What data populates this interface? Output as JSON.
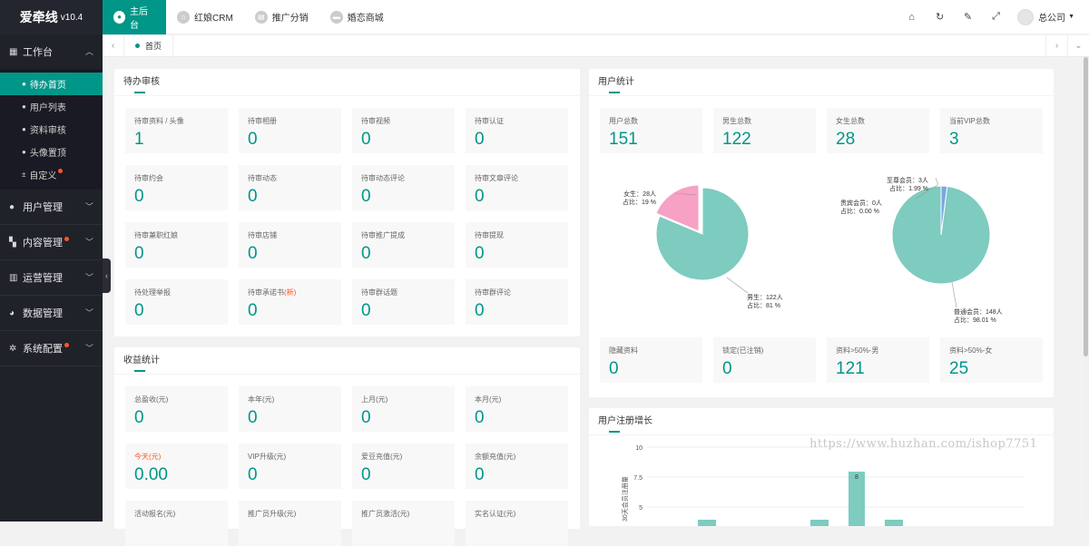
{
  "brand": {
    "name": "爱牵线",
    "version": "v10.4"
  },
  "sidebar": {
    "workbench": "工作台",
    "sub_items": [
      {
        "label": "待办首页",
        "active": true
      },
      {
        "label": "用户列表"
      },
      {
        "label": "资料审核"
      },
      {
        "label": "头像置顶"
      },
      {
        "label": "自定义"
      }
    ],
    "groups": [
      {
        "label": "用户管理"
      },
      {
        "label": "内容管理"
      },
      {
        "label": "运营管理"
      },
      {
        "label": "数据管理"
      },
      {
        "label": "系统配置"
      }
    ]
  },
  "topbar": {
    "tabs": [
      "主后台",
      "红娘CRM",
      "推广分销",
      "婚恋商城"
    ],
    "user": "总公司"
  },
  "tabsbar": {
    "home": "首页"
  },
  "pending": {
    "title": "待办审核",
    "items": [
      {
        "label": "待审资料 / 头像",
        "value": "1"
      },
      {
        "label": "待审相册",
        "value": "0"
      },
      {
        "label": "待审视频",
        "value": "0"
      },
      {
        "label": "待审认证",
        "value": "0"
      },
      {
        "label": "待审约会",
        "value": "0"
      },
      {
        "label": "待审动态",
        "value": "0"
      },
      {
        "label": "待审动态评论",
        "value": "0"
      },
      {
        "label": "待审文章评论",
        "value": "0"
      },
      {
        "label": "待审兼职红娘",
        "value": "0"
      },
      {
        "label": "待审店铺",
        "value": "0"
      },
      {
        "label": "待审推广提成",
        "value": "0"
      },
      {
        "label": "待审提现",
        "value": "0"
      },
      {
        "label": "待处理举报",
        "value": "0"
      },
      {
        "label": "待审承诺书",
        "label_new": "(新)",
        "value": "0"
      },
      {
        "label": "待审群话题",
        "value": "0"
      },
      {
        "label": "待审群评论",
        "value": "0"
      }
    ]
  },
  "income": {
    "title": "收益统计",
    "items": [
      {
        "label": "总盈收(元)",
        "value": "0"
      },
      {
        "label": "本年(元)",
        "value": "0"
      },
      {
        "label": "上月(元)",
        "value": "0"
      },
      {
        "label": "本月(元)",
        "value": "0"
      },
      {
        "label": "今天(元)",
        "value": "0.00",
        "highlight": true
      },
      {
        "label": "VIP升级(元)",
        "value": "0"
      },
      {
        "label": "爱豆充值(元)",
        "value": "0"
      },
      {
        "label": "余额充值(元)",
        "value": "0"
      },
      {
        "label": "活动报名(元)",
        "value": ""
      },
      {
        "label": "推广员升级(元)",
        "value": ""
      },
      {
        "label": "推广员激活(元)",
        "value": ""
      },
      {
        "label": "实名认证(元)",
        "value": ""
      }
    ]
  },
  "users": {
    "title": "用户统计",
    "top": [
      {
        "label": "用户总数",
        "value": "151"
      },
      {
        "label": "男生总数",
        "value": "122"
      },
      {
        "label": "女生总数",
        "value": "28"
      },
      {
        "label": "当前VIP总数",
        "value": "3"
      }
    ],
    "bottom": [
      {
        "label": "隐藏资料",
        "value": "0"
      },
      {
        "label": "锁定(已注销)",
        "value": "0"
      },
      {
        "label": "资料>50%-男",
        "value": "121"
      },
      {
        "label": "资料>50%-女",
        "value": "25"
      }
    ],
    "gender_pie": {
      "female_label": "女生：28人",
      "female_pct": "占比：19 %",
      "male_label": "男生：122人",
      "male_pct": "占比：81 %",
      "female": 28,
      "male": 122
    },
    "member_pie": {
      "supreme_label": "至尊会员：3人",
      "supreme_pct": "占比：1.99 %",
      "honored_label": "贵宾会员：0人",
      "honored_pct": "占比：0.00 %",
      "normal_label": "普通会员：148人",
      "normal_pct": "占比：98.01 %",
      "supreme": 3,
      "honored": 0,
      "normal": 148
    }
  },
  "growth": {
    "title": "用户注册增长",
    "ylabel": "30天会员注册量",
    "yticks": [
      "10",
      "7.5",
      "5"
    ],
    "peak_label": "8"
  },
  "colors": {
    "accent": "#009688",
    "pink": "#f7a1c4",
    "teal": "#7ecbc0",
    "blue": "#7aa7e0"
  },
  "watermark": "https://www.huzhan.com/ishop7751"
}
